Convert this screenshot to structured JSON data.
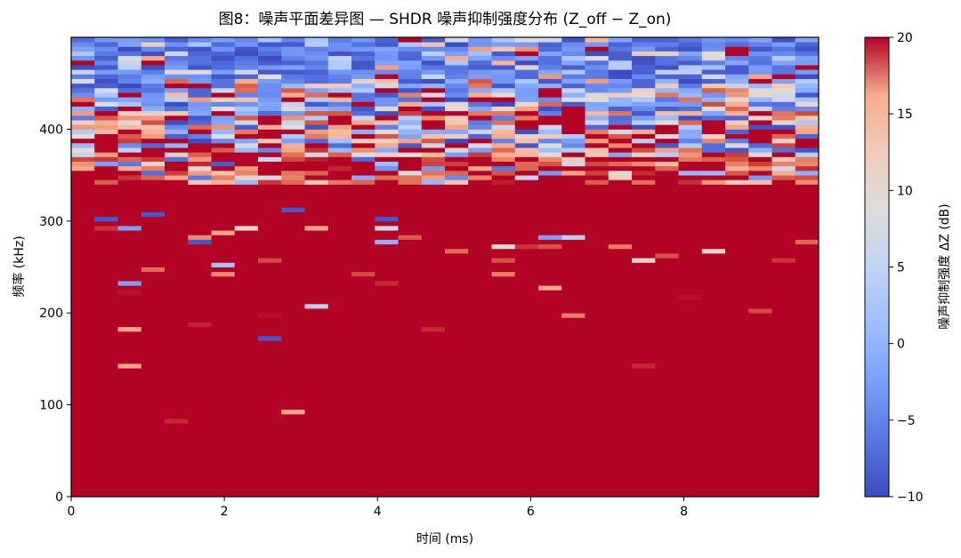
{
  "chart_data": {
    "type": "heatmap",
    "title": "图8：噪声平面差异图 — SHDR 噪声抑制强度分布 (Z_off − Z_on)",
    "xlabel": "时间 (ms)",
    "ylabel": "频率 (kHz)",
    "colorbar_label": "噪声抑制强度 ΔZ (dB)",
    "colormap": "coolwarm",
    "xlim": [
      0,
      9.76
    ],
    "ylim": [
      0,
      500
    ],
    "clim": [
      -10,
      20
    ],
    "x_ticks": [
      0,
      2,
      4,
      6,
      8
    ],
    "x_tick_labels": [
      "0",
      "2",
      "4",
      "6",
      "8"
    ],
    "y_ticks": [
      0,
      100,
      200,
      300,
      400
    ],
    "y_tick_labels": [
      "0",
      "100",
      "200",
      "300",
      "400"
    ],
    "colorbar_ticks": [
      -10,
      -5,
      0,
      5,
      10,
      15,
      20
    ],
    "colorbar_tick_labels": [
      "−10",
      "−5",
      "0",
      "5",
      "10",
      "15",
      "20"
    ],
    "grid": false,
    "n_time_bins": 32,
    "time_bin_ms": 0.305,
    "n_freq_bins": 100,
    "freq_bin_khz": 5,
    "structure": {
      "description": "Below ~340 kHz suppression saturates at +20 dB (dark red) with sparse outliers; 340–420 kHz mixed noisy band; above ~420 kHz mostly negative (blue, about −10 to 0 dB).",
      "saturated_below_khz": 340,
      "mixed_band_khz": [
        340,
        420
      ],
      "blue_above_khz": 420,
      "saturated_value_db": 20
    },
    "outliers": [
      {
        "col": 2,
        "row": 46,
        "value": -3
      },
      {
        "col": 3,
        "row": 49,
        "value": 15
      },
      {
        "col": 6,
        "row": 50,
        "value": 1
      },
      {
        "col": 6,
        "row": 48,
        "value": 13
      },
      {
        "col": 8,
        "row": 51,
        "value": 17
      },
      {
        "col": 2,
        "row": 44,
        "value": 19.3
      },
      {
        "col": 2,
        "row": 36,
        "value": 11
      },
      {
        "col": 2,
        "row": 28,
        "value": 11
      },
      {
        "col": 5,
        "row": 37,
        "value": 18.8
      },
      {
        "col": 8,
        "row": 39,
        "value": 19.6
      },
      {
        "col": 8,
        "row": 34,
        "value": -9
      },
      {
        "col": 10,
        "row": 41,
        "value": 3
      },
      {
        "col": 9,
        "row": 18,
        "value": 11
      },
      {
        "col": 4,
        "row": 16,
        "value": 18.5
      },
      {
        "col": 12,
        "row": 48,
        "value": 17
      },
      {
        "col": 13,
        "row": 46,
        "value": 18.5
      },
      {
        "col": 15,
        "row": 36,
        "value": 18.5
      },
      {
        "col": 20,
        "row": 45,
        "value": 11
      },
      {
        "col": 21,
        "row": 39,
        "value": 14
      },
      {
        "col": 18,
        "row": 51,
        "value": 16.5
      },
      {
        "col": 18,
        "row": 48,
        "value": 14
      },
      {
        "col": 24,
        "row": 28,
        "value": 18.5
      },
      {
        "col": 26,
        "row": 43,
        "value": 19.6
      },
      {
        "col": 29,
        "row": 40,
        "value": 17
      },
      {
        "col": 16,
        "row": 53,
        "value": 15
      },
      {
        "col": 24,
        "row": 51,
        "value": 6
      },
      {
        "col": 25,
        "row": 52,
        "value": 16.5
      },
      {
        "col": 27,
        "row": 53,
        "value": 6
      },
      {
        "col": 30,
        "row": 51,
        "value": 18
      },
      {
        "col": 23,
        "row": 54,
        "value": 14
      },
      {
        "col": 20,
        "row": 56,
        "value": -3
      },
      {
        "col": 21,
        "row": 56,
        "value": 3
      },
      {
        "col": 18,
        "row": 54,
        "value": 5
      },
      {
        "col": 19,
        "row": 54,
        "value": 18
      },
      {
        "col": 20,
        "row": 54,
        "value": 16.5
      },
      {
        "col": 31,
        "row": 55,
        "value": 15.5
      },
      {
        "col": 1,
        "row": 60,
        "value": -9
      },
      {
        "col": 1,
        "row": 58,
        "value": 18
      },
      {
        "col": 2,
        "row": 58,
        "value": -3
      },
      {
        "col": 6,
        "row": 57,
        "value": 11
      },
      {
        "col": 7,
        "row": 58,
        "value": 6
      },
      {
        "col": 10,
        "row": 58,
        "value": 11
      },
      {
        "col": 13,
        "row": 58,
        "value": 4
      },
      {
        "col": 13,
        "row": 60,
        "value": -9
      },
      {
        "col": 13,
        "row": 55,
        "value": -1
      },
      {
        "col": 3,
        "row": 61,
        "value": -9
      },
      {
        "col": 5,
        "row": 56,
        "value": 13
      },
      {
        "col": 5,
        "row": 55,
        "value": -9
      },
      {
        "col": 9,
        "row": 62,
        "value": -9
      },
      {
        "col": 14,
        "row": 56,
        "value": 16
      }
    ]
  }
}
